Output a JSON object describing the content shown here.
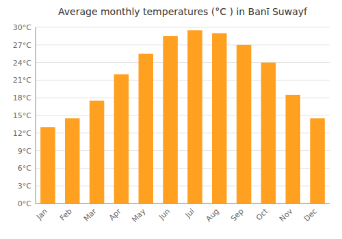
{
  "chart_data": {
    "type": "bar",
    "title": "Average monthly temperatures (°C ) in Banī Suwayf",
    "categories": [
      "Jan",
      "Feb",
      "Mar",
      "Apr",
      "May",
      "Jun",
      "Jul",
      "Aug",
      "Sep",
      "Oct",
      "Nov",
      "Dec"
    ],
    "values": [
      13.0,
      14.5,
      17.5,
      22.0,
      25.5,
      28.5,
      29.5,
      29.0,
      27.0,
      24.0,
      18.5,
      14.5
    ],
    "color": "#FFA020",
    "ylim": [
      0,
      30
    ],
    "yticks": [
      {
        "value": 0,
        "label": "0°C"
      },
      {
        "value": 3,
        "label": "3°C"
      },
      {
        "value": 6,
        "label": "6°C"
      },
      {
        "value": 9,
        "label": "9°C"
      },
      {
        "value": 12,
        "label": "12°C"
      },
      {
        "value": 15,
        "label": "15°C"
      },
      {
        "value": 18,
        "label": "18°C"
      },
      {
        "value": 21,
        "label": "21°C"
      },
      {
        "value": 24,
        "label": "24°C"
      },
      {
        "value": 27,
        "label": "27°C"
      },
      {
        "value": 30,
        "label": "30°C"
      }
    ],
    "grid": true
  }
}
